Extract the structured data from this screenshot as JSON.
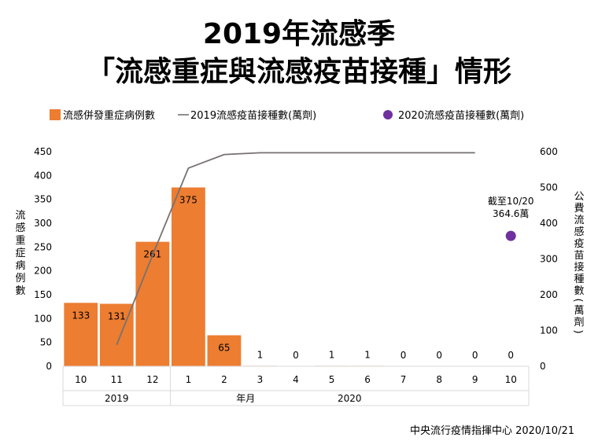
{
  "title_line1": "2019年流感季",
  "title_line2": "「流感重症與流感疫苗接種」情形",
  "source": "中央流行疫情指揮中心  2020/10/21",
  "colors": {
    "bar": "#ED7D31",
    "line": "#767171",
    "dot": "#7030A0"
  },
  "chart_data": {
    "type": "bar",
    "categories": [
      "10",
      "11",
      "12",
      "1",
      "2",
      "3",
      "4",
      "5",
      "6",
      "7",
      "8",
      "9",
      "10"
    ],
    "year_groups": [
      {
        "label": "2019",
        "span": 3
      },
      {
        "label": "2020",
        "span": 10
      }
    ],
    "x_axis_title": "年月",
    "ylabel": "流感重症病例數",
    "y2label": "公費流感疫苗接種數(萬劑)",
    "ylim": [
      0,
      450
    ],
    "yticks": [
      0,
      50,
      100,
      150,
      200,
      250,
      300,
      350,
      400,
      450
    ],
    "y2lim": [
      0,
      600
    ],
    "y2ticks": [
      0,
      100,
      200,
      300,
      400,
      500,
      600
    ],
    "series": [
      {
        "name": "流感併發重症病例數",
        "type": "bar",
        "axis": "left",
        "values": [
          133,
          131,
          261,
          375,
          65,
          1,
          0,
          1,
          1,
          0,
          0,
          0,
          0
        ],
        "labels": [
          "133",
          "131",
          "261",
          "375",
          "65",
          "1",
          "0",
          "1",
          "1",
          "0",
          "0",
          "0",
          "0"
        ]
      },
      {
        "name": "2019流感疫苗接種數(萬劑)",
        "type": "line",
        "axis": "right",
        "values": [
          null,
          60,
          310,
          554,
          592,
          597,
          597,
          597,
          597,
          597,
          597,
          597,
          null
        ]
      },
      {
        "name": "2020流感疫苗接種數(萬劑)",
        "type": "scatter",
        "axis": "right",
        "points": [
          {
            "category_index": 12,
            "value": 364.6
          }
        ]
      }
    ],
    "legend": [
      {
        "symbol": "bar",
        "text": "流感併發重症病例數"
      },
      {
        "symbol": "line",
        "text": "2019流感疫苗接種數(萬劑)"
      },
      {
        "symbol": "dot",
        "text": "2020流感疫苗接種數(萬劑)"
      }
    ],
    "annotation": [
      "截至10/20",
      "364.6萬"
    ]
  }
}
